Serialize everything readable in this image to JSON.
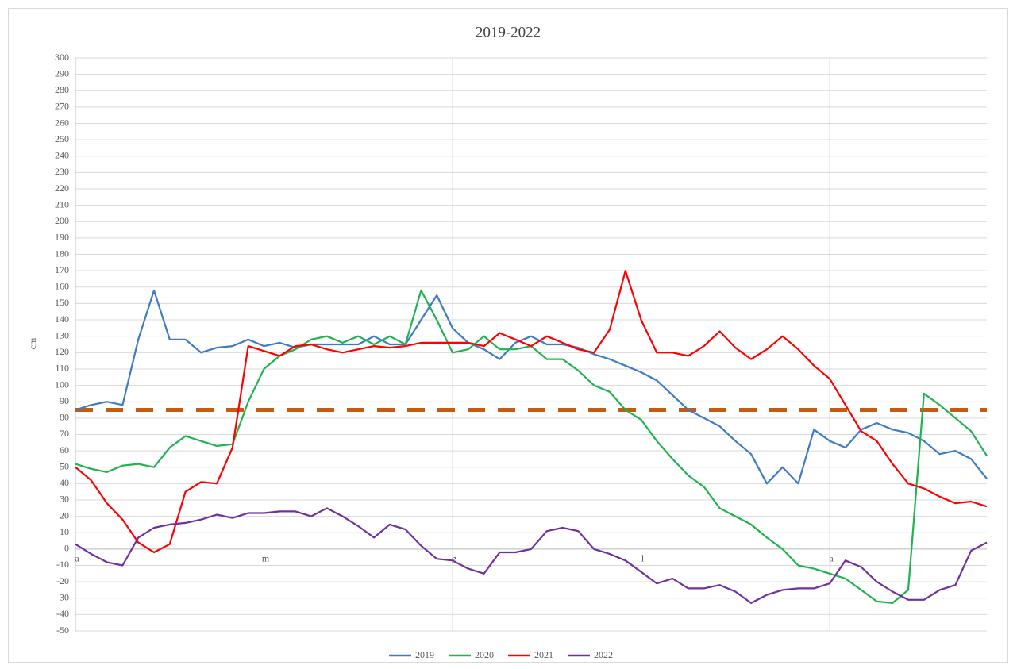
{
  "chart_data": {
    "type": "line",
    "title": "2019-2022",
    "y_label": "cm",
    "categories": [
      "a",
      null,
      null,
      null,
      null,
      null,
      null,
      null,
      null,
      null,
      null,
      null,
      "m",
      null,
      null,
      null,
      null,
      null,
      null,
      null,
      null,
      null,
      null,
      null,
      "g",
      null,
      null,
      null,
      null,
      null,
      null,
      null,
      null,
      null,
      null,
      null,
      "l",
      null,
      null,
      null,
      null,
      null,
      null,
      null,
      null,
      null,
      null,
      null,
      "a",
      null,
      null,
      null,
      null,
      null,
      null,
      null,
      null,
      null,
      null
    ],
    "series": [
      {
        "name": "2019",
        "color": "#3d7cc2",
        "values": [
          85,
          88,
          90,
          88,
          128,
          158,
          128,
          128,
          120,
          123,
          124,
          128,
          124,
          126,
          123,
          125,
          125,
          125,
          125,
          130,
          125,
          125,
          140,
          155,
          135,
          126,
          122,
          116,
          126,
          130,
          125,
          125,
          123,
          119,
          116,
          112,
          108,
          103,
          94,
          85,
          80,
          75,
          66,
          58,
          40,
          50,
          40,
          73,
          66,
          62,
          73,
          77,
          73,
          71,
          66,
          58,
          60,
          55,
          43
        ]
      },
      {
        "name": "2020",
        "color": "#1fb34f",
        "values": [
          52,
          49,
          47,
          51,
          52,
          50,
          62,
          69,
          66,
          63,
          64,
          90,
          110,
          118,
          122,
          128,
          130,
          126,
          130,
          125,
          130,
          125,
          158,
          140,
          120,
          122,
          130,
          122,
          122,
          124,
          116,
          116,
          109,
          100,
          96,
          85,
          79,
          66,
          55,
          45,
          38,
          25,
          20,
          15,
          7,
          0,
          -10,
          -12,
          -15,
          -18,
          -25,
          -32,
          -33,
          -25,
          95,
          88,
          80,
          72,
          57
        ]
      },
      {
        "name": "2021",
        "color": "#ff0000",
        "values": [
          50,
          42,
          28,
          18,
          4,
          -2,
          3,
          35,
          41,
          40,
          62,
          124,
          121,
          118,
          124,
          125,
          122,
          120,
          122,
          124,
          123,
          124,
          126,
          126,
          126,
          126,
          124,
          132,
          128,
          124,
          130,
          126,
          122,
          120,
          134,
          170,
          140,
          120,
          120,
          118,
          124,
          133,
          123,
          116,
          122,
          130,
          122,
          112,
          104,
          88,
          72,
          66,
          52,
          40,
          37,
          32,
          28,
          29,
          26
        ]
      },
      {
        "name": "2022",
        "color": "#7030a0",
        "values": [
          3,
          -3,
          -8,
          -10,
          7,
          13,
          15,
          16,
          18,
          21,
          19,
          22,
          22,
          23,
          23,
          20,
          25,
          20,
          14,
          7,
          15,
          12,
          2,
          -6,
          -7,
          -12,
          -15,
          -2,
          -2,
          0,
          11,
          13,
          11,
          0,
          -3,
          -7,
          -14,
          -21,
          -18,
          -24,
          -24,
          -22,
          -26,
          -33,
          -28,
          -25,
          -24,
          -24,
          -21,
          -7,
          -11,
          -20,
          -26,
          -31,
          -31,
          -25,
          -22,
          -1,
          4
        ]
      }
    ],
    "reference_line": {
      "value": 85,
      "color": "#c55a11"
    },
    "ylim": [
      -50,
      300
    ],
    "yticks": [
      -50,
      -40,
      -30,
      -20,
      -10,
      0,
      10,
      20,
      30,
      40,
      50,
      60,
      70,
      80,
      90,
      100,
      110,
      120,
      130,
      140,
      150,
      160,
      170,
      180,
      190,
      200,
      210,
      220,
      230,
      240,
      250,
      260,
      270,
      280,
      290,
      300
    ],
    "grid": true,
    "legend": "bottom"
  }
}
